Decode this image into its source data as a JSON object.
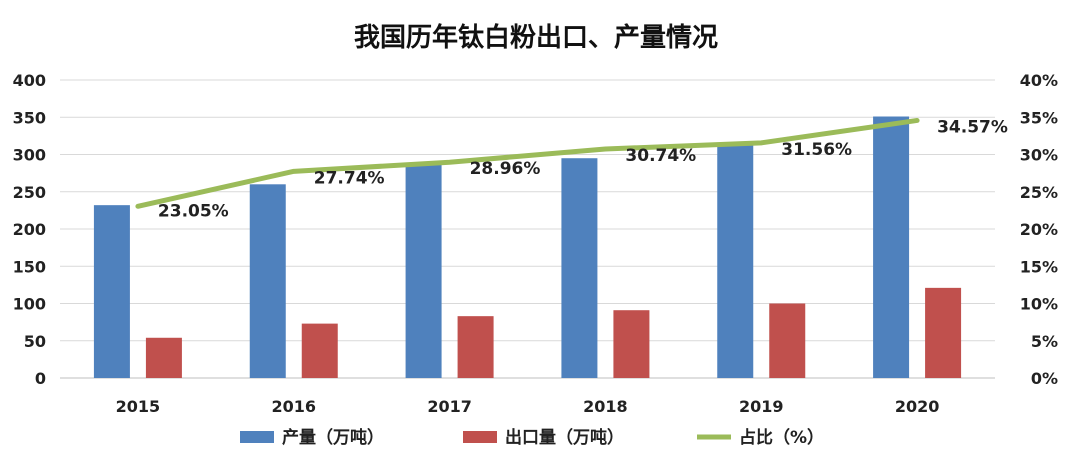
{
  "chart_data": {
    "type": "bar",
    "title": "我国历年钛白粉出口、产量情况",
    "categories": [
      "2015",
      "2016",
      "2017",
      "2018",
      "2019",
      "2020"
    ],
    "series": [
      {
        "name": "产量（万吨）",
        "type": "bar",
        "axis": "left",
        "color": "#4f81bd",
        "values": [
          232,
          260,
          287,
          295,
          316,
          351
        ]
      },
      {
        "name": "出口量（万吨）",
        "type": "bar",
        "axis": "left",
        "color": "#c0504d",
        "values": [
          54,
          73,
          83,
          91,
          100,
          121
        ]
      },
      {
        "name": "占比（%）",
        "type": "line",
        "axis": "right",
        "color": "#9bbb59",
        "values": [
          23.05,
          27.74,
          28.96,
          30.74,
          31.56,
          34.57
        ],
        "labels": [
          "23.05%",
          "27.74%",
          "28.96%",
          "30.74%",
          "31.56%",
          "34.57%"
        ]
      }
    ],
    "y_left": {
      "min": 0,
      "max": 400,
      "ticks": [
        "0",
        "50",
        "100",
        "150",
        "200",
        "250",
        "300",
        "350",
        "400"
      ]
    },
    "y_right": {
      "min": 0,
      "max": 40,
      "ticks": [
        "0%",
        "5%",
        "10%",
        "15%",
        "20%",
        "25%",
        "30%",
        "35%",
        "40%"
      ]
    },
    "grid": true,
    "legend_position": "bottom"
  }
}
